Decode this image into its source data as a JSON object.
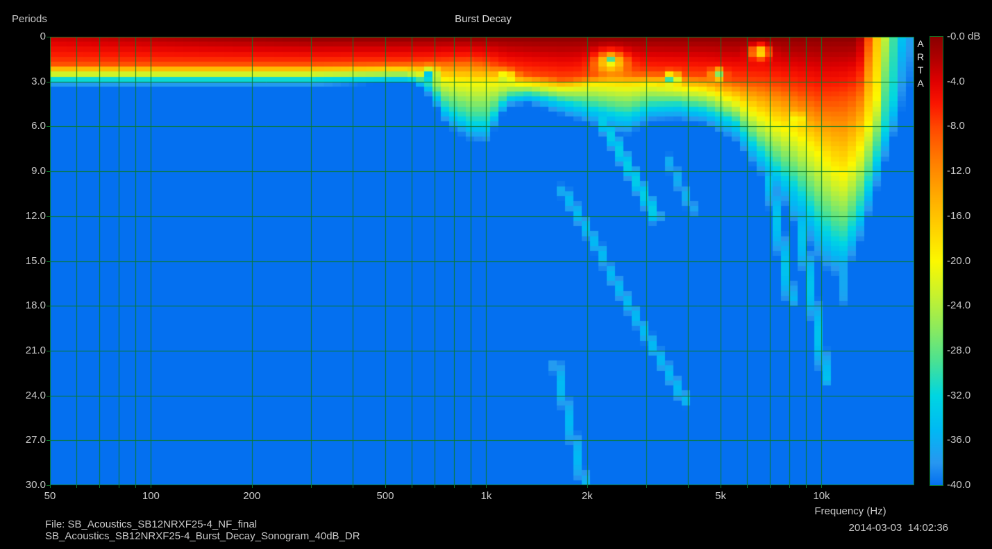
{
  "header": {
    "title": "Burst Decay",
    "y_axis_title": "Periods"
  },
  "footer": {
    "file_line": "File: SB_Acoustics_SB12NRXF25-4_NF_final",
    "name_line": "SB_Acoustics_SB12NRXF25-4_Burst_Decay_Sonogram_40dB_DR",
    "timestamp": "2014-03-03  14:02:36"
  },
  "x_axis": {
    "label": "Frequency (Hz)",
    "ticks": [
      {
        "v": 50,
        "label": "50"
      },
      {
        "v": 100,
        "label": "100"
      },
      {
        "v": 200,
        "label": "200"
      },
      {
        "v": 500,
        "label": "500"
      },
      {
        "v": 1000,
        "label": "1k"
      },
      {
        "v": 2000,
        "label": "2k"
      },
      {
        "v": 5000,
        "label": "5k"
      },
      {
        "v": 10000,
        "label": "10k"
      }
    ]
  },
  "y_axis": {
    "ticks": [
      {
        "v": 0,
        "label": "0"
      },
      {
        "v": 3,
        "label": "3.0"
      },
      {
        "v": 6,
        "label": "6.0"
      },
      {
        "v": 9,
        "label": "9.0"
      },
      {
        "v": 12,
        "label": "12.0"
      },
      {
        "v": 15,
        "label": "15.0"
      },
      {
        "v": 18,
        "label": "18.0"
      },
      {
        "v": 21,
        "label": "21.0"
      },
      {
        "v": 24,
        "label": "24.0"
      },
      {
        "v": 27,
        "label": "27.0"
      },
      {
        "v": 30,
        "label": "30.0"
      }
    ]
  },
  "colorbar": {
    "brand": "ARTA",
    "tick_labels": [
      "-0.0 dB",
      "-4.0",
      "-8.0",
      "-12.0",
      "-16.0",
      "-20.0",
      "-24.0",
      "-28.0",
      "-32.0",
      "-36.0",
      "-40.0"
    ],
    "range_db": [
      0,
      -40
    ]
  },
  "colors": {
    "background": "#000000",
    "grid": "#0a7a28",
    "text": "#c9c9c9",
    "floor_blue": "#0470f0"
  },
  "chart_data": {
    "type": "heatmap",
    "title": "Burst Decay",
    "xlabel": "Frequency (Hz)",
    "ylabel": "Periods",
    "x_scale": "log",
    "x_range": [
      50,
      18900
    ],
    "y_range": [
      0,
      30
    ],
    "value_range_db": [
      0,
      -40
    ],
    "x_gridlines": [
      60,
      70,
      80,
      90,
      100,
      200,
      300,
      400,
      500,
      600,
      700,
      800,
      900,
      1000,
      2000,
      3000,
      4000,
      5000,
      6000,
      7000,
      8000,
      9000,
      10000
    ],
    "y_gridline_step": 3,
    "colormap": [
      [
        0,
        "#8a0000"
      ],
      [
        -2,
        "#b20000"
      ],
      [
        -4,
        "#e00000"
      ],
      [
        -6,
        "#fb1600"
      ],
      [
        -8,
        "#ff4600"
      ],
      [
        -11,
        "#ff7c00"
      ],
      [
        -14,
        "#ffa800"
      ],
      [
        -17,
        "#ffd000"
      ],
      [
        -20,
        "#fcf800"
      ],
      [
        -23,
        "#c8f22e"
      ],
      [
        -26,
        "#8cea5e"
      ],
      [
        -29,
        "#49e194"
      ],
      [
        -32,
        "#00d6e2"
      ],
      [
        -35,
        "#00baf4"
      ],
      [
        -38,
        "#2897f0"
      ],
      [
        -40,
        "#0470f0"
      ]
    ],
    "envelope_columns": [
      "freq_hz",
      "level0_db",
      "t_minus8dB",
      "t_minus20dB",
      "t_minus32dB",
      "t_minus40dB"
    ],
    "envelope": [
      [
        50,
        -3,
        1.8,
        2.4,
        2.85,
        3.3
      ],
      [
        150,
        -1,
        1.8,
        2.4,
        2.85,
        3.3
      ],
      [
        300,
        0,
        1.8,
        2.4,
        2.85,
        3.3
      ],
      [
        560,
        0,
        1.75,
        2.3,
        2.75,
        3.1
      ],
      [
        620,
        0,
        1.72,
        2.4,
        2.85,
        3.2
      ],
      [
        680,
        0,
        1.7,
        2.6,
        3.4,
        4.1
      ],
      [
        760,
        0,
        1.6,
        2.9,
        4.9,
        6.0
      ],
      [
        900,
        0,
        1.55,
        3.0,
        5.8,
        7.0
      ],
      [
        1000,
        0,
        1.7,
        3.0,
        5.8,
        7.1
      ],
      [
        1080,
        0,
        1.9,
        3.05,
        5.0,
        5.9
      ],
      [
        1150,
        0,
        2.2,
        3.1,
        4.1,
        4.7
      ],
      [
        1350,
        0,
        2.5,
        3.2,
        3.9,
        4.5
      ],
      [
        1700,
        0,
        2.8,
        3.4,
        4.4,
        5.3
      ],
      [
        2100,
        0,
        2.6,
        3.2,
        4.8,
        6.0
      ],
      [
        2600,
        0,
        2.4,
        3.3,
        5.3,
        6.7
      ],
      [
        3100,
        0,
        2.4,
        3.2,
        4.7,
        5.7
      ],
      [
        3700,
        0,
        2.5,
        3.4,
        4.6,
        5.6
      ],
      [
        4500,
        0,
        2.6,
        3.6,
        4.9,
        5.9
      ],
      [
        5500,
        0,
        2.9,
        4.3,
        5.7,
        7.0
      ],
      [
        6500,
        0,
        3.0,
        5.3,
        7.6,
        9.2
      ],
      [
        7500,
        0,
        3.2,
        6.0,
        9.0,
        11.0
      ],
      [
        8500,
        0,
        3.6,
        6.6,
        10.2,
        12.6
      ],
      [
        10000,
        0,
        4.2,
        8.0,
        12.6,
        15.5
      ],
      [
        11500,
        0,
        4.0,
        9.4,
        14.0,
        16.5
      ],
      [
        12800,
        0,
        3.5,
        8.0,
        12.2,
        14.4
      ],
      [
        13600,
        -6,
        2.2,
        6.4,
        10.4,
        12.6
      ],
      [
        14400,
        -14,
        0.8,
        4.6,
        8.6,
        10.8
      ],
      [
        15300,
        -22,
        0.2,
        2.6,
        6.6,
        8.8
      ],
      [
        16300,
        -29,
        0.1,
        0.8,
        4.4,
        7.0
      ],
      [
        17300,
        -34,
        0.05,
        0.3,
        2.2,
        5.2
      ],
      [
        18300,
        -37,
        0.02,
        0.1,
        0.8,
        3.6
      ],
      [
        18900,
        -38.5,
        0.01,
        0.05,
        0.4,
        2.8
      ]
    ],
    "blobs": [
      {
        "f": 680,
        "p": 2.5,
        "ro": 0.06,
        "rp": 0.42,
        "d": -16
      },
      {
        "f": 1150,
        "p": 2.6,
        "ro": 0.07,
        "rp": 0.37,
        "d": -10
      },
      {
        "f": 2350,
        "p": 1.7,
        "ro": 0.15,
        "rp": 0.75,
        "d": -13
      },
      {
        "f": 2350,
        "p": 1.5,
        "ro": 0.05,
        "rp": 0.25,
        "d": -12
      },
      {
        "f": 3580,
        "p": 2.75,
        "ro": 0.06,
        "rp": 0.33,
        "d": -22
      },
      {
        "f": 4900,
        "p": 2.5,
        "ro": 0.055,
        "rp": 0.33,
        "d": -20
      },
      {
        "f": 6550,
        "p": 1.0,
        "ro": 0.09,
        "rp": 0.45,
        "d": -16
      },
      {
        "f": 8500,
        "p": 5.5,
        "ro": 0.05,
        "rp": 0.4,
        "d": -8
      }
    ],
    "streaks": [
      {
        "f1": 2050,
        "p1": 4.2,
        "f2": 3200,
        "p2": 12.0,
        "level": -33
      },
      {
        "f1": 1700,
        "p1": 10.3,
        "f2": 2250,
        "p2": 14.8,
        "level": -35
      },
      {
        "f1": 2300,
        "p1": 15.5,
        "f2": 3900,
        "p2": 24.3,
        "level": -35
      },
      {
        "f1": 1620,
        "p1": 22.0,
        "f2": 1960,
        "p2": 30.0,
        "level": -35
      },
      {
        "f1": 3500,
        "p1": 8.3,
        "f2": 4100,
        "p2": 11.5,
        "level": -36
      },
      {
        "f1": 7000,
        "p1": 9.5,
        "f2": 8100,
        "p2": 17.5,
        "level": -34
      },
      {
        "f1": 8200,
        "p1": 9.6,
        "f2": 10300,
        "p2": 22.8,
        "level": -34
      },
      {
        "f1": 11200,
        "p1": 12.5,
        "f2": 11800,
        "p2": 17.5,
        "level": -36.5
      }
    ]
  }
}
